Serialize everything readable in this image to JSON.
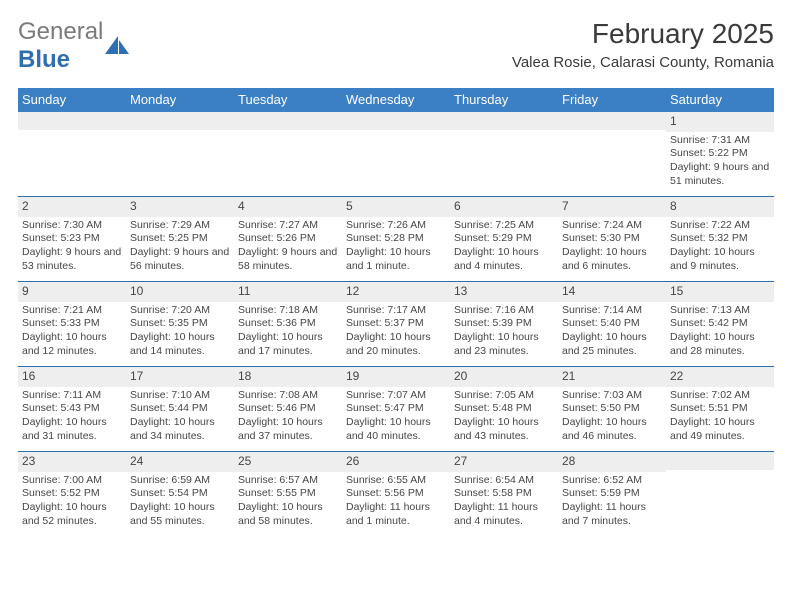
{
  "logo": {
    "text1": "General",
    "text2": "Blue"
  },
  "title": "February 2025",
  "location": "Valea Rosie, Calarasi County, Romania",
  "colors": {
    "header_bg": "#3b7fc4",
    "header_text": "#ffffff",
    "date_bg": "#eeeeee",
    "divider": "#2f6fb0",
    "body_text": "#464646",
    "logo_gray": "#7a7a7a",
    "logo_blue": "#2f6fb0"
  },
  "day_names": [
    "Sunday",
    "Monday",
    "Tuesday",
    "Wednesday",
    "Thursday",
    "Friday",
    "Saturday"
  ],
  "weeks": [
    [
      null,
      null,
      null,
      null,
      null,
      null,
      {
        "d": "1",
        "sr": "7:31 AM",
        "ss": "5:22 PM",
        "dl": "Daylight: 9 hours and 51 minutes."
      }
    ],
    [
      {
        "d": "2",
        "sr": "7:30 AM",
        "ss": "5:23 PM",
        "dl": "Daylight: 9 hours and 53 minutes."
      },
      {
        "d": "3",
        "sr": "7:29 AM",
        "ss": "5:25 PM",
        "dl": "Daylight: 9 hours and 56 minutes."
      },
      {
        "d": "4",
        "sr": "7:27 AM",
        "ss": "5:26 PM",
        "dl": "Daylight: 9 hours and 58 minutes."
      },
      {
        "d": "5",
        "sr": "7:26 AM",
        "ss": "5:28 PM",
        "dl": "Daylight: 10 hours and 1 minute."
      },
      {
        "d": "6",
        "sr": "7:25 AM",
        "ss": "5:29 PM",
        "dl": "Daylight: 10 hours and 4 minutes."
      },
      {
        "d": "7",
        "sr": "7:24 AM",
        "ss": "5:30 PM",
        "dl": "Daylight: 10 hours and 6 minutes."
      },
      {
        "d": "8",
        "sr": "7:22 AM",
        "ss": "5:32 PM",
        "dl": "Daylight: 10 hours and 9 minutes."
      }
    ],
    [
      {
        "d": "9",
        "sr": "7:21 AM",
        "ss": "5:33 PM",
        "dl": "Daylight: 10 hours and 12 minutes."
      },
      {
        "d": "10",
        "sr": "7:20 AM",
        "ss": "5:35 PM",
        "dl": "Daylight: 10 hours and 14 minutes."
      },
      {
        "d": "11",
        "sr": "7:18 AM",
        "ss": "5:36 PM",
        "dl": "Daylight: 10 hours and 17 minutes."
      },
      {
        "d": "12",
        "sr": "7:17 AM",
        "ss": "5:37 PM",
        "dl": "Daylight: 10 hours and 20 minutes."
      },
      {
        "d": "13",
        "sr": "7:16 AM",
        "ss": "5:39 PM",
        "dl": "Daylight: 10 hours and 23 minutes."
      },
      {
        "d": "14",
        "sr": "7:14 AM",
        "ss": "5:40 PM",
        "dl": "Daylight: 10 hours and 25 minutes."
      },
      {
        "d": "15",
        "sr": "7:13 AM",
        "ss": "5:42 PM",
        "dl": "Daylight: 10 hours and 28 minutes."
      }
    ],
    [
      {
        "d": "16",
        "sr": "7:11 AM",
        "ss": "5:43 PM",
        "dl": "Daylight: 10 hours and 31 minutes."
      },
      {
        "d": "17",
        "sr": "7:10 AM",
        "ss": "5:44 PM",
        "dl": "Daylight: 10 hours and 34 minutes."
      },
      {
        "d": "18",
        "sr": "7:08 AM",
        "ss": "5:46 PM",
        "dl": "Daylight: 10 hours and 37 minutes."
      },
      {
        "d": "19",
        "sr": "7:07 AM",
        "ss": "5:47 PM",
        "dl": "Daylight: 10 hours and 40 minutes."
      },
      {
        "d": "20",
        "sr": "7:05 AM",
        "ss": "5:48 PM",
        "dl": "Daylight: 10 hours and 43 minutes."
      },
      {
        "d": "21",
        "sr": "7:03 AM",
        "ss": "5:50 PM",
        "dl": "Daylight: 10 hours and 46 minutes."
      },
      {
        "d": "22",
        "sr": "7:02 AM",
        "ss": "5:51 PM",
        "dl": "Daylight: 10 hours and 49 minutes."
      }
    ],
    [
      {
        "d": "23",
        "sr": "7:00 AM",
        "ss": "5:52 PM",
        "dl": "Daylight: 10 hours and 52 minutes."
      },
      {
        "d": "24",
        "sr": "6:59 AM",
        "ss": "5:54 PM",
        "dl": "Daylight: 10 hours and 55 minutes."
      },
      {
        "d": "25",
        "sr": "6:57 AM",
        "ss": "5:55 PM",
        "dl": "Daylight: 10 hours and 58 minutes."
      },
      {
        "d": "26",
        "sr": "6:55 AM",
        "ss": "5:56 PM",
        "dl": "Daylight: 11 hours and 1 minute."
      },
      {
        "d": "27",
        "sr": "6:54 AM",
        "ss": "5:58 PM",
        "dl": "Daylight: 11 hours and 4 minutes."
      },
      {
        "d": "28",
        "sr": "6:52 AM",
        "ss": "5:59 PM",
        "dl": "Daylight: 11 hours and 7 minutes."
      },
      null
    ]
  ],
  "labels": {
    "sunrise_prefix": "Sunrise: ",
    "sunset_prefix": "Sunset: "
  }
}
